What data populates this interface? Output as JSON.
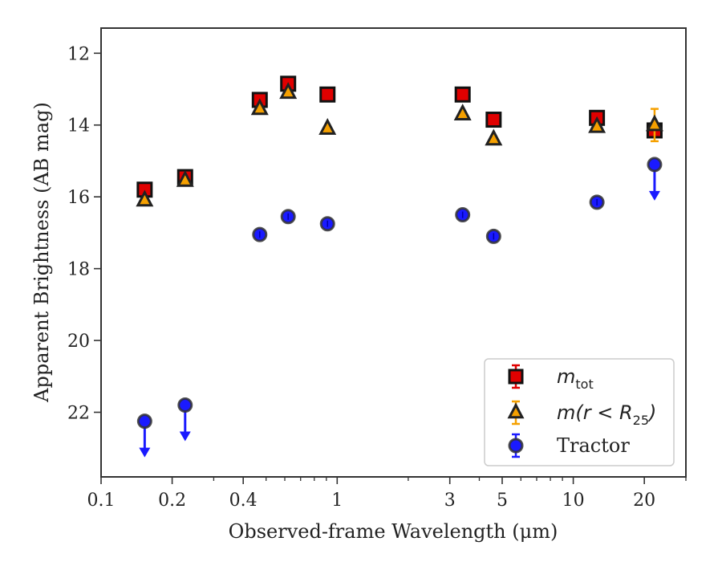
{
  "chart_data": {
    "type": "scatter",
    "xscale": "log",
    "xlabel": "Observed-frame Wavelength (μm)",
    "ylabel": "Apparent Brightness (AB mag)",
    "xlim": [
      0.1,
      30
    ],
    "ylim": [
      23.8,
      11.3
    ],
    "y_inverted": true,
    "xticks": [
      {
        "value": 0.1,
        "label": "0.1"
      },
      {
        "value": 0.2,
        "label": "0.2"
      },
      {
        "value": 0.4,
        "label": "0.4"
      },
      {
        "value": 1,
        "label": "1"
      },
      {
        "value": 3,
        "label": "3"
      },
      {
        "value": 5,
        "label": "5"
      },
      {
        "value": 10,
        "label": "10"
      },
      {
        "value": 20,
        "label": "20"
      }
    ],
    "yticks": [
      {
        "value": 12,
        "label": "12"
      },
      {
        "value": 14,
        "label": "14"
      },
      {
        "value": 16,
        "label": "16"
      },
      {
        "value": 18,
        "label": "18"
      },
      {
        "value": 20,
        "label": "20"
      },
      {
        "value": 22,
        "label": "22"
      }
    ],
    "series": [
      {
        "name": "m_tot",
        "label_main": "m",
        "label_sub": "tot",
        "marker": "square",
        "color": "#e00000",
        "edge": "#111111",
        "errcolor": "#e00000",
        "points": [
          {
            "x": 0.153,
            "y": 15.8
          },
          {
            "x": 0.227,
            "y": 15.45
          },
          {
            "x": 0.47,
            "y": 13.3
          },
          {
            "x": 0.62,
            "y": 12.85
          },
          {
            "x": 0.91,
            "y": 13.15
          },
          {
            "x": 3.4,
            "y": 13.15
          },
          {
            "x": 4.6,
            "y": 13.85
          },
          {
            "x": 12.6,
            "y": 13.8
          },
          {
            "x": 22.1,
            "y": 14.15,
            "err": 0.15
          }
        ]
      },
      {
        "name": "m(r<R25)",
        "label_main": "m(r < R",
        "label_sub": "25",
        "label_end": ")",
        "marker": "triangle",
        "color": "#f5a000",
        "edge": "#222222",
        "errcolor": "#f5a000",
        "points": [
          {
            "x": 0.153,
            "y": 16.1
          },
          {
            "x": 0.227,
            "y": 15.55
          },
          {
            "x": 0.47,
            "y": 13.55
          },
          {
            "x": 0.62,
            "y": 13.1
          },
          {
            "x": 0.91,
            "y": 14.1
          },
          {
            "x": 3.4,
            "y": 13.7
          },
          {
            "x": 4.6,
            "y": 14.4
          },
          {
            "x": 12.6,
            "y": 14.05
          },
          {
            "x": 22.1,
            "y": 14.0,
            "err": 0.45
          }
        ]
      },
      {
        "name": "Tractor",
        "label_main": "Tractor",
        "marker": "circle",
        "color": "#1a1aff",
        "edge": "#333333",
        "errcolor": "#1a1aff",
        "points": [
          {
            "x": 0.153,
            "y": 22.25,
            "upper_limit": true
          },
          {
            "x": 0.227,
            "y": 21.8,
            "upper_limit": true
          },
          {
            "x": 0.47,
            "y": 17.05
          },
          {
            "x": 0.62,
            "y": 16.55
          },
          {
            "x": 0.91,
            "y": 16.75
          },
          {
            "x": 3.4,
            "y": 16.5
          },
          {
            "x": 4.6,
            "y": 17.1
          },
          {
            "x": 12.6,
            "y": 16.15
          },
          {
            "x": 22.1,
            "y": 15.1,
            "upper_limit": true
          }
        ]
      }
    ],
    "legend_position": "lower-right"
  }
}
